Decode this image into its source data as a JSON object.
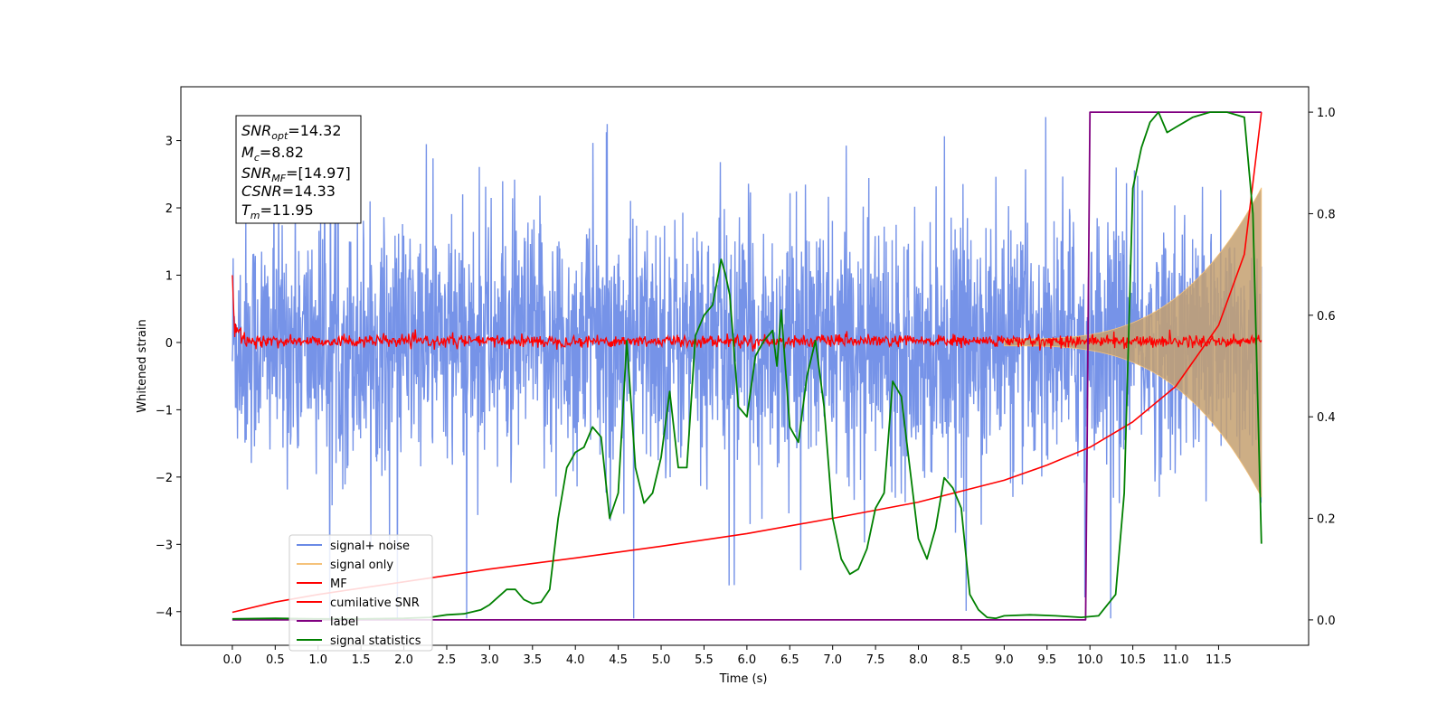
{
  "chart_data": {
    "type": "line",
    "title": "",
    "xlabel": "Time (s)",
    "ylabel": "Whitened strain",
    "xlim": [
      -0.6,
      12.55
    ],
    "ylim": [
      -4.5,
      3.8
    ],
    "y2lim": [
      -0.05,
      1.05
    ],
    "x_ticks": [
      "0.0",
      "0.5",
      "1.0",
      "1.5",
      "2.0",
      "2.5",
      "3.0",
      "3.5",
      "4.0",
      "4.5",
      "5.0",
      "5.5",
      "6.0",
      "6.5",
      "7.0",
      "7.5",
      "8.0",
      "8.5",
      "9.0",
      "9.5",
      "10.0",
      "10.5",
      "11.0",
      "11.5"
    ],
    "y_ticks": [
      "3",
      "2",
      "1",
      "0",
      "−1",
      "−2",
      "−3",
      "−4"
    ],
    "y2_ticks": [
      "1.0",
      "0.8",
      "0.6",
      "0.4",
      "0.2",
      "0.0"
    ],
    "grid": false,
    "legend_position": "lower-left",
    "colors": {
      "signal_noise": "#6a8ae6",
      "signal_only": "#f5c27a",
      "mf": "#ff0000",
      "csnr": "#ff0000",
      "label": "#800080",
      "statistics": "#008000",
      "signal_fill": "#c4a070"
    },
    "annotation": {
      "snr_opt": {
        "sym": "SNR",
        "sub": "opt",
        "value": "=14.32"
      },
      "mc": {
        "sym": "M",
        "sub": "c",
        "value": "=8.82"
      },
      "snr_mf": {
        "sym": "SNR",
        "sub": "MF",
        "value": "=[14.97]"
      },
      "csnr": {
        "sym": "CSNR",
        "sub": "",
        "value": "=14.33"
      },
      "tm": {
        "sym": "T",
        "sub": "m",
        "value": "=11.95"
      }
    },
    "series": [
      {
        "key": "signal_noise",
        "name": "signal+ noise",
        "axis": "left",
        "description": "whitened noise, amplitude about ±1.3 with spikes to ±3.4, t 0 to 12.0"
      },
      {
        "key": "signal_only",
        "name": "signal only",
        "axis": "left",
        "description": "chirp envelope growing from ~0.05 at t=9 to ~2.3 at t=12"
      },
      {
        "key": "mf",
        "name": "MF",
        "axis": "left",
        "description": "noisy around 0 with amplitude ~0.1, starting at 1.0 at t=0"
      },
      {
        "key": "csnr",
        "name": "cumilative SNR",
        "axis": "right",
        "x": [
          0.0,
          0.5,
          1.0,
          2.0,
          3.0,
          4.0,
          5.0,
          6.0,
          7.0,
          8.0,
          9.0,
          9.5,
          10.0,
          10.5,
          11.0,
          11.5,
          11.8,
          12.0
        ],
        "y": [
          0.015,
          0.035,
          0.05,
          0.075,
          0.1,
          0.122,
          0.145,
          0.17,
          0.2,
          0.232,
          0.275,
          0.305,
          0.34,
          0.39,
          0.46,
          0.58,
          0.72,
          1.0
        ]
      },
      {
        "key": "label",
        "name": "label",
        "axis": "right",
        "x": [
          0.0,
          9.95,
          10.0,
          12.0
        ],
        "y": [
          0.0,
          0.0,
          1.0,
          1.0
        ]
      },
      {
        "key": "statistics",
        "name": "signal statistics",
        "axis": "right",
        "x": [
          0.0,
          0.5,
          1.0,
          1.5,
          2.0,
          2.3,
          2.5,
          2.7,
          2.9,
          3.0,
          3.2,
          3.3,
          3.4,
          3.5,
          3.6,
          3.7,
          3.8,
          3.9,
          4.0,
          4.1,
          4.2,
          4.3,
          4.4,
          4.5,
          4.6,
          4.7,
          4.8,
          4.9,
          5.0,
          5.1,
          5.2,
          5.3,
          5.4,
          5.5,
          5.6,
          5.7,
          5.75,
          5.8,
          5.9,
          6.0,
          6.1,
          6.2,
          6.3,
          6.35,
          6.4,
          6.5,
          6.6,
          6.7,
          6.8,
          6.9,
          7.0,
          7.1,
          7.2,
          7.3,
          7.4,
          7.5,
          7.6,
          7.7,
          7.8,
          7.9,
          8.0,
          8.1,
          8.2,
          8.3,
          8.4,
          8.5,
          8.6,
          8.7,
          8.8,
          8.9,
          9.0,
          9.3,
          9.6,
          9.9,
          10.1,
          10.3,
          10.4,
          10.5,
          10.6,
          10.7,
          10.8,
          10.9,
          11.0,
          11.1,
          11.2,
          11.4,
          11.6,
          11.8,
          11.9,
          12.0
        ],
        "y": [
          0.002,
          0.003,
          0.002,
          0.002,
          0.003,
          0.005,
          0.01,
          0.012,
          0.02,
          0.03,
          0.06,
          0.06,
          0.04,
          0.032,
          0.035,
          0.06,
          0.2,
          0.3,
          0.33,
          0.34,
          0.38,
          0.36,
          0.2,
          0.25,
          0.55,
          0.3,
          0.23,
          0.25,
          0.32,
          0.45,
          0.3,
          0.3,
          0.56,
          0.6,
          0.62,
          0.71,
          0.68,
          0.64,
          0.42,
          0.4,
          0.52,
          0.55,
          0.57,
          0.5,
          0.61,
          0.38,
          0.35,
          0.48,
          0.55,
          0.42,
          0.2,
          0.12,
          0.09,
          0.1,
          0.14,
          0.22,
          0.25,
          0.47,
          0.44,
          0.3,
          0.16,
          0.12,
          0.18,
          0.28,
          0.26,
          0.22,
          0.05,
          0.02,
          0.005,
          0.003,
          0.008,
          0.01,
          0.008,
          0.005,
          0.008,
          0.05,
          0.25,
          0.85,
          0.93,
          0.98,
          1.0,
          0.96,
          0.97,
          0.98,
          0.99,
          1.0,
          1.0,
          0.99,
          0.8,
          0.15
        ]
      }
    ]
  }
}
